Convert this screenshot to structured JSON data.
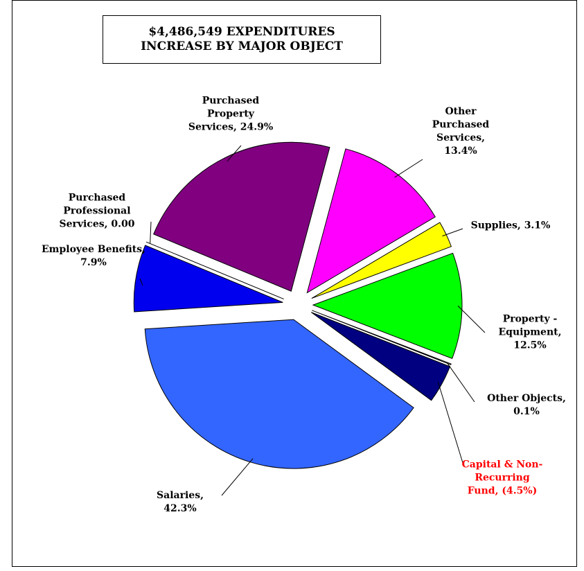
{
  "chart_data": {
    "type": "pie",
    "title": [
      "$4,486,549 EXPENDITURES",
      "INCREASE BY MAJOR OBJECT"
    ],
    "categories": [
      "Other Purchased Services,",
      "Supplies,",
      "Property - Equipment,",
      "Other Objects,",
      "Capital & Non-Recurring Fund,",
      "Salaries,",
      "Employee Benefits,",
      "Purchased Professional Services,",
      "Purchased Property Services,"
    ],
    "values": [
      13.4,
      3.1,
      12.5,
      0.1,
      -4.5,
      42.3,
      7.9,
      0,
      24.9
    ],
    "value_labels": [
      "13.4%",
      "3.1%",
      "12.5%",
      "0.1%",
      "(4.5%)",
      "42.3%",
      "7.9%",
      "0.00",
      "24.9%"
    ],
    "colors": [
      "#ff00ff",
      "#ffff00",
      "#00ff00",
      "#ffffff",
      "#000080",
      "#3366ff",
      "#0000ee",
      "#ff9999",
      "#800080"
    ],
    "label_colors": [
      "#000000",
      "#000000",
      "#000000",
      "#000000",
      "#ff0000",
      "#000000",
      "#000000",
      "#000000",
      "#000000"
    ],
    "exploded": true
  }
}
